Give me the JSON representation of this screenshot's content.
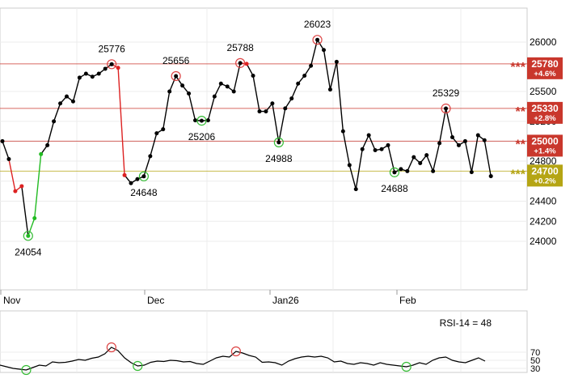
{
  "watermark": "m",
  "chart_data": [
    {
      "type": "line",
      "x_ticks": [
        "Nov",
        "Dec",
        "Jan26",
        "Feb"
      ],
      "y_ticks": [
        24000,
        24200,
        24400,
        24600,
        24800,
        25000,
        25200,
        25500,
        26000
      ],
      "series": [
        {
          "values": [
            25000,
            24820,
            24500,
            24550,
            24054,
            24230,
            24870,
            24960,
            25200,
            25380,
            25450,
            25400,
            25640,
            25680,
            25650,
            25680,
            25730,
            25776,
            25740,
            24660,
            24580,
            24620,
            24648,
            24850,
            25080,
            25120,
            25500,
            25656,
            25560,
            25480,
            25210,
            25206,
            25210,
            25450,
            25580,
            25550,
            25500,
            25788,
            25780,
            25660,
            25300,
            25300,
            25380,
            24988,
            25330,
            25430,
            25580,
            25660,
            25760,
            26023,
            25920,
            25520,
            25800,
            25100,
            24760,
            24520,
            24920,
            25060,
            24910,
            24920,
            24960,
            24688,
            24720,
            24700,
            24840,
            24780,
            24860,
            24700,
            24980,
            25329,
            25040,
            24960,
            25000,
            24690,
            25060,
            25010,
            24650
          ],
          "up_moves": [
            4,
            5
          ],
          "down_moves": [
            1,
            2,
            17,
            18,
            37
          ]
        }
      ],
      "annotations": [
        {
          "label": "24054",
          "index": 4,
          "kind": "low"
        },
        {
          "label": "25776",
          "index": 17,
          "kind": "high"
        },
        {
          "label": "24648",
          "index": 22,
          "kind": "low"
        },
        {
          "label": "25656",
          "index": 27,
          "kind": "high"
        },
        {
          "label": "25206",
          "index": 31,
          "kind": "low"
        },
        {
          "label": "25788",
          "index": 37,
          "kind": "high"
        },
        {
          "label": "24988",
          "index": 43,
          "kind": "low"
        },
        {
          "label": "26023",
          "index": 49,
          "kind": "high"
        },
        {
          "label": "24688",
          "index": 61,
          "kind": "low"
        },
        {
          "label": "25329",
          "index": 69,
          "kind": "high"
        }
      ],
      "levels": [
        {
          "value": 25780,
          "stars": "***",
          "label": "25780",
          "change": "+4.6%",
          "color": "#c9372c"
        },
        {
          "value": 25330,
          "stars": "**",
          "label": "25330",
          "change": "+2.8%",
          "color": "#c9372c"
        },
        {
          "value": 25000,
          "stars": "**",
          "label": "25000",
          "change": "+1.4%",
          "color": "#c9372c"
        },
        {
          "value": 24700,
          "stars": "***",
          "label": "24700",
          "change": "+0.2%",
          "color": "#b5a514"
        }
      ],
      "colors": {
        "line": "#000000",
        "up": "#22bb22",
        "down": "#dd2222",
        "high_circle": "#dd4444",
        "low_circle": "#33bb33"
      }
    },
    {
      "type": "line",
      "title": "RSI-14 = 48",
      "y_ticks": [
        30,
        50,
        70
      ],
      "values": [
        38,
        34,
        30,
        28,
        26,
        32,
        38,
        36,
        46,
        44,
        45,
        48,
        52,
        50,
        55,
        58,
        66,
        82,
        74,
        56,
        44,
        36,
        38,
        45,
        48,
        47,
        50,
        49,
        46,
        47,
        42,
        40,
        48,
        56,
        60,
        58,
        72,
        68,
        62,
        58,
        45,
        46,
        44,
        38,
        48,
        54,
        58,
        60,
        58,
        60,
        56,
        46,
        48,
        42,
        40,
        44,
        42,
        38,
        44,
        40,
        38,
        36,
        34,
        38,
        44,
        40,
        50,
        56,
        58,
        50,
        46,
        44,
        50,
        56,
        48
      ],
      "circles": [
        {
          "index": 4,
          "kind": "low"
        },
        {
          "index": 17,
          "kind": "high"
        },
        {
          "index": 21,
          "kind": "low"
        },
        {
          "index": 36,
          "kind": "high"
        },
        {
          "index": 62,
          "kind": "low"
        }
      ]
    }
  ]
}
